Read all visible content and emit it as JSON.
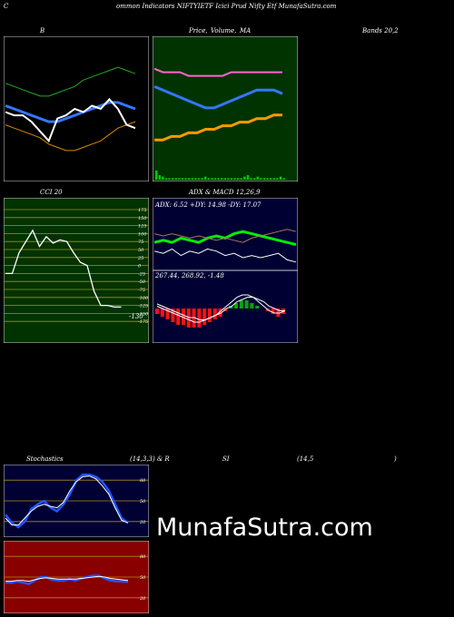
{
  "header": {
    "c": "C",
    "text": "ommon  Indicators NIFTYIETF Icici  Prud Nifty Etf  MunafaSutra.com"
  },
  "row1": {
    "b_label": "B",
    "price_label": "Price,",
    "volume_label": "Volume,",
    "ma_label": "MA",
    "bands_label": "Bands 20,2"
  },
  "row2": {
    "cci_label": "CCI 20",
    "adx_label": "ADX  & MACD 12,26,9",
    "adx_values": "ADX: 6.52  +DY: 14.98  -DY: 17.07",
    "macd_values": "267.44,  268.92,  -1.48"
  },
  "row3": {
    "stoch_label": "Stochastics",
    "stoch_params": "(14,3,3) & R",
    "si_label": "SI",
    "rsi_params": "(14,5",
    "close_paren": ")"
  },
  "brand": "MunafaSutra.com",
  "colors": {
    "panel_black": "#000000",
    "panel_navy": "#000033",
    "price_green": "#003300",
    "cci_green": "#003300",
    "rsi_red": "#880000",
    "grid_gold": "#b08a1a",
    "band_green": "#22aa22",
    "band_orange": "#dd8800",
    "ma_blue": "#3377ff",
    "ma_orange": "#ff9900",
    "ma_pink": "#ff66cc",
    "adx_green": "#00ee00",
    "macd_red": "#ff1111",
    "stoch_blue": "#2255ff"
  },
  "chart_data": [
    {
      "type": "line",
      "panel": "bollinger",
      "series": [
        {
          "role": "upper",
          "color": "#22aa22",
          "values": [
            262,
            261,
            260,
            259,
            258,
            258,
            259,
            260,
            261,
            263,
            264,
            265,
            266,
            267,
            266,
            265
          ]
        },
        {
          "role": "middle",
          "color": "#3377ff",
          "values": [
            255,
            254,
            253,
            252,
            251,
            250,
            250,
            251,
            252,
            253,
            254,
            255,
            256,
            256,
            255,
            254
          ]
        },
        {
          "role": "lower",
          "color": "#dd8800",
          "values": [
            249,
            248,
            247,
            246,
            245,
            243,
            242,
            241,
            241,
            242,
            243,
            244,
            246,
            248,
            249,
            250
          ]
        },
        {
          "role": "close",
          "color": "#ffffff",
          "values": [
            253,
            252,
            252,
            250,
            247,
            244,
            251,
            252,
            254,
            253,
            255,
            254,
            257,
            254,
            249,
            248
          ]
        }
      ]
    },
    {
      "type": "line",
      "panel": "price-ma",
      "series": [
        {
          "role": "ma-short",
          "color": "#3377ff",
          "values": [
            30,
            29,
            28,
            27,
            26,
            25,
            24,
            24,
            25,
            26,
            27,
            28,
            29,
            29,
            29,
            28
          ]
        },
        {
          "role": "ma-long",
          "color": "#ff9900",
          "values": [
            15,
            15,
            16,
            16,
            17,
            17,
            18,
            18,
            19,
            19,
            20,
            20,
            21,
            21,
            22,
            22
          ]
        },
        {
          "role": "ma-top",
          "color": "#ff66cc",
          "values": [
            35,
            34,
            34,
            34,
            33,
            33,
            33,
            33,
            33,
            34,
            34,
            34,
            34,
            34,
            34,
            34
          ]
        }
      ],
      "volume": [
        6,
        3,
        2,
        1,
        1,
        1,
        1,
        1,
        1,
        1,
        1,
        1,
        1,
        1,
        1,
        2,
        1,
        1,
        1,
        1,
        1,
        1,
        1,
        1,
        1,
        1,
        1,
        2,
        3,
        1,
        1,
        2,
        1,
        1,
        1,
        1,
        1,
        1,
        2,
        1
      ]
    },
    {
      "type": "line",
      "panel": "cci",
      "tick_labels": [
        "175",
        "150",
        "125",
        "100",
        "75",
        "50",
        "25",
        "0",
        "-25",
        "-50",
        "-75",
        "-100",
        "-125",
        "-150",
        "-175"
      ],
      "last_label": "-130",
      "values": [
        -25,
        -25,
        40,
        75,
        110,
        60,
        90,
        70,
        80,
        75,
        40,
        10,
        0,
        -80,
        -125,
        -125,
        -130,
        -130
      ]
    },
    {
      "type": "line",
      "panel": "adx",
      "series": [
        {
          "name": "ADX",
          "color": "#ffffff",
          "values": [
            8,
            7,
            9,
            6,
            8,
            7,
            9,
            8,
            6,
            7,
            5,
            6,
            5,
            6,
            7,
            4,
            3
          ]
        },
        {
          "name": "+DY",
          "color": "#00ee00",
          "values": [
            12,
            13,
            12,
            14,
            13,
            12,
            14,
            15,
            14,
            16,
            17,
            16,
            15,
            14,
            13,
            12,
            11
          ]
        },
        {
          "name": "-DY",
          "color": "#aa7755",
          "values": [
            16,
            15,
            16,
            15,
            14,
            15,
            14,
            13,
            14,
            13,
            12,
            14,
            15,
            16,
            17,
            18,
            17
          ]
        }
      ]
    },
    {
      "type": "bar",
      "panel": "macd",
      "histogram": [
        -2,
        -3,
        -4,
        -5,
        -6,
        -6,
        -7,
        -7,
        -7,
        -6,
        -5,
        -4,
        -3,
        -1,
        1,
        2,
        3,
        3,
        2,
        1,
        0,
        -1,
        -2,
        -3,
        -2
      ],
      "series": [
        {
          "name": "MACD",
          "values": [
            1,
            0,
            -1,
            -2,
            -3,
            -4,
            -5,
            -6,
            -6,
            -5,
            -4,
            -3,
            -1,
            1,
            3,
            5,
            6,
            6,
            5,
            3,
            1,
            -1,
            -2,
            -2,
            -1
          ]
        },
        {
          "name": "Signal",
          "values": [
            2,
            1,
            0,
            -1,
            -2,
            -3,
            -4,
            -4,
            -5,
            -5,
            -4,
            -3,
            -2,
            0,
            1,
            3,
            4,
            5,
            5,
            4,
            3,
            1,
            0,
            -1,
            -1
          ]
        }
      ]
    },
    {
      "type": "line",
      "panel": "stochastics",
      "tick_labels": [
        "80",
        "50",
        "20"
      ],
      "series": [
        {
          "name": "%K",
          "color": "#2255ff",
          "values": [
            30,
            18,
            12,
            20,
            38,
            45,
            50,
            40,
            35,
            45,
            60,
            80,
            88,
            88,
            85,
            78,
            65,
            45,
            25,
            18
          ]
        },
        {
          "name": "%D",
          "color": "#ffffff",
          "values": [
            25,
            15,
            15,
            25,
            35,
            42,
            45,
            42,
            40,
            48,
            65,
            78,
            85,
            86,
            82,
            72,
            60,
            40,
            22,
            18
          ]
        }
      ]
    },
    {
      "type": "line",
      "panel": "rsi",
      "tick_labels": [
        "80",
        "50",
        "20"
      ],
      "series": [
        {
          "name": "RSI",
          "color": "#2255ff",
          "values": [
            42,
            42,
            44,
            42,
            40,
            45,
            50,
            50,
            46,
            45,
            45,
            47,
            45,
            48,
            50,
            52,
            52,
            48,
            45,
            44,
            44,
            43
          ]
        },
        {
          "name": "RSI-avg",
          "color": "#ffffff",
          "values": [
            44,
            44,
            45,
            45,
            44,
            46,
            48,
            49,
            48,
            47,
            47,
            47,
            47,
            48,
            49,
            50,
            51,
            50,
            48,
            47,
            46,
            45
          ]
        }
      ]
    }
  ]
}
